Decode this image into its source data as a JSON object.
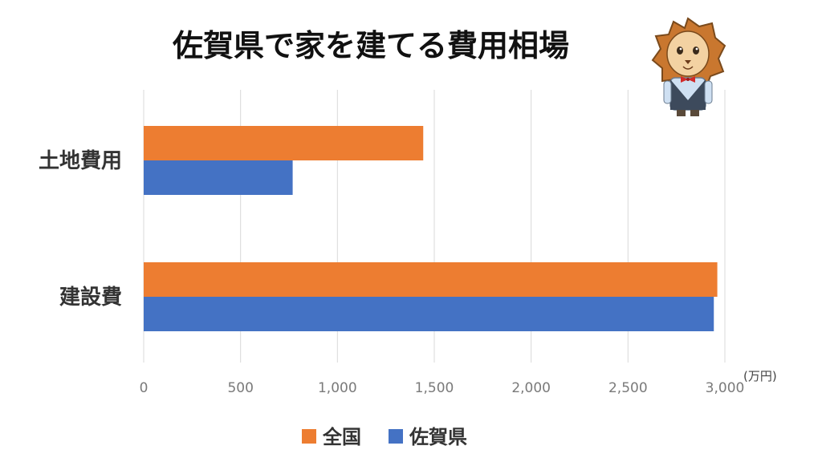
{
  "chart_data": {
    "type": "bar",
    "orientation": "horizontal",
    "title": "佐賀県で家を建てる費用相場",
    "categories": [
      "土地費用",
      "建設費"
    ],
    "series": [
      {
        "name": "全国",
        "color": "#ED7D31",
        "values": [
          1443,
          2961
        ]
      },
      {
        "name": "佐賀県",
        "color": "#4472C4",
        "values": [
          769,
          2943
        ]
      }
    ],
    "xlim": [
      0,
      3000
    ],
    "ticks": [
      0,
      500,
      1000,
      1500,
      2000,
      2500,
      3000
    ],
    "tick_labels": [
      "0",
      "500",
      "1,000",
      "1,500",
      "2,000",
      "2,500",
      "3,000"
    ],
    "unit": "(万円)",
    "grid": true,
    "legend_position": "bottom"
  },
  "mascot": {
    "icon": "lion-mascot-icon"
  }
}
